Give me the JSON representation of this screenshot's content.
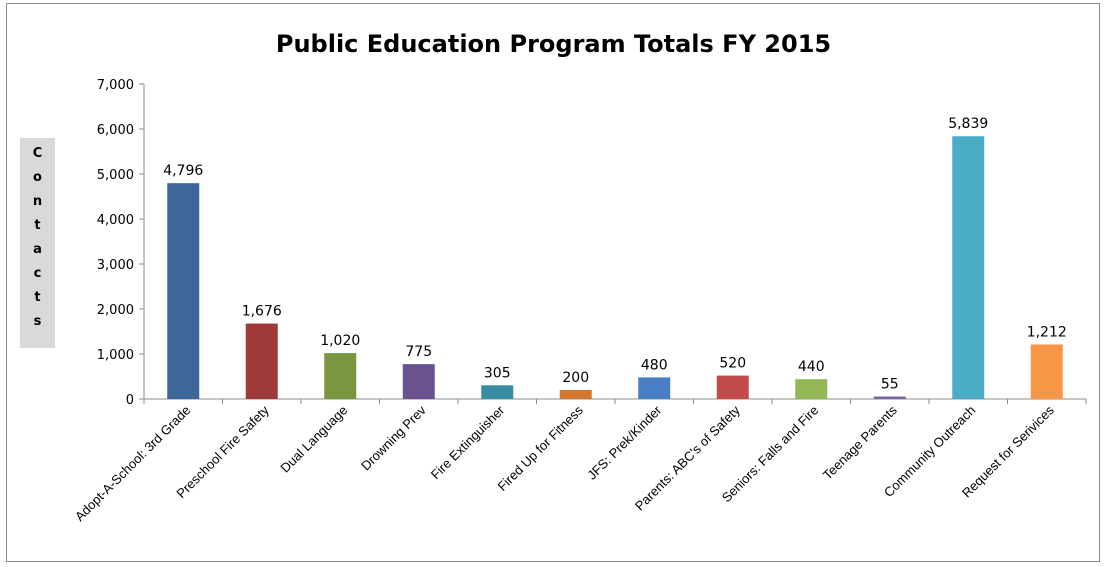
{
  "chart_data": {
    "type": "bar",
    "title": "Public Education Program Totals FY 2015",
    "ylabel": "Contacts",
    "xlabel": "",
    "ylim": [
      0,
      7000
    ],
    "yticks": [
      "0",
      "1,000",
      "2,000",
      "3,000",
      "4,000",
      "5,000",
      "6,000",
      "7,000"
    ],
    "categories": [
      "Adopt-A-School: 3rd Grade",
      "Preschool Fire Safety",
      "Dual Language",
      "Drowning Prev",
      "Fire Extinguisher",
      "Fired Up for Fitness",
      "JFS: Prek/Kinder",
      "Parents: ABC's of Safety",
      "Seniors: Falls and Fire",
      "Teenage Parents",
      "Community Outreach",
      "Request for Serivices"
    ],
    "values": [
      4796,
      1676,
      1020,
      775,
      305,
      200,
      480,
      520,
      440,
      55,
      5839,
      1212
    ],
    "value_labels": [
      "4,796",
      "1,676",
      "1,020",
      "775",
      "305",
      "200",
      "480",
      "520",
      "440",
      "55",
      "5,839",
      "1,212"
    ],
    "colors": [
      "#3f6699",
      "#9e3b3a",
      "#7a9740",
      "#6a5290",
      "#3a8ca3",
      "#d4782f",
      "#4a7ec4",
      "#c24a48",
      "#93b657",
      "#7b63a3",
      "#4bacc6",
      "#f79646"
    ],
    "grid": false,
    "legend": "none"
  }
}
